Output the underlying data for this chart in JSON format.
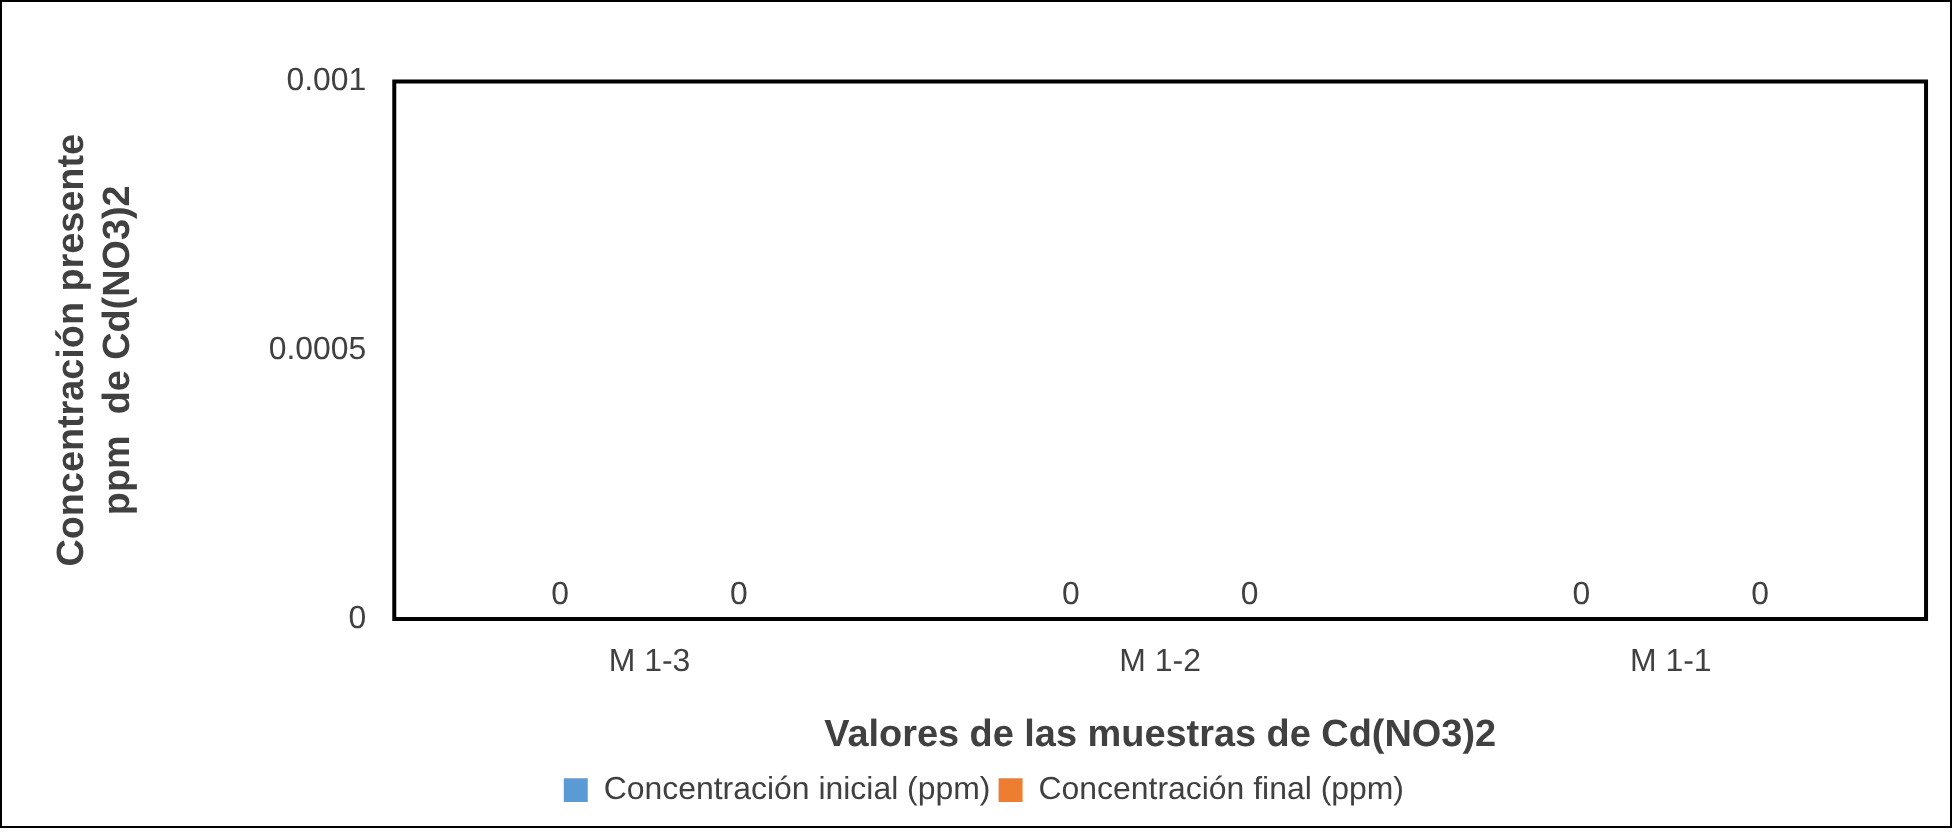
{
  "chart_data": {
    "type": "bar",
    "xlabel": "Valores de las muestras de Cd(NO3)2",
    "ylabel": "Concentración presente\nppm  de Cd(NO3)2",
    "categories": [
      "M 1-3",
      "M 1-2",
      "M 1-1"
    ],
    "series": [
      {
        "name": "Concentración inicial (ppm)",
        "color": "#5b9bd5",
        "values": [
          0,
          0,
          0
        ]
      },
      {
        "name": "Concentración final (ppm)",
        "color": "#ed7d31",
        "values": [
          0,
          0,
          0
        ]
      }
    ],
    "ylim": [
      0,
      0.001
    ],
    "yticks": [
      0,
      0.0005,
      0.001
    ],
    "grid": false,
    "legend": "bottom",
    "data_labels": true
  }
}
